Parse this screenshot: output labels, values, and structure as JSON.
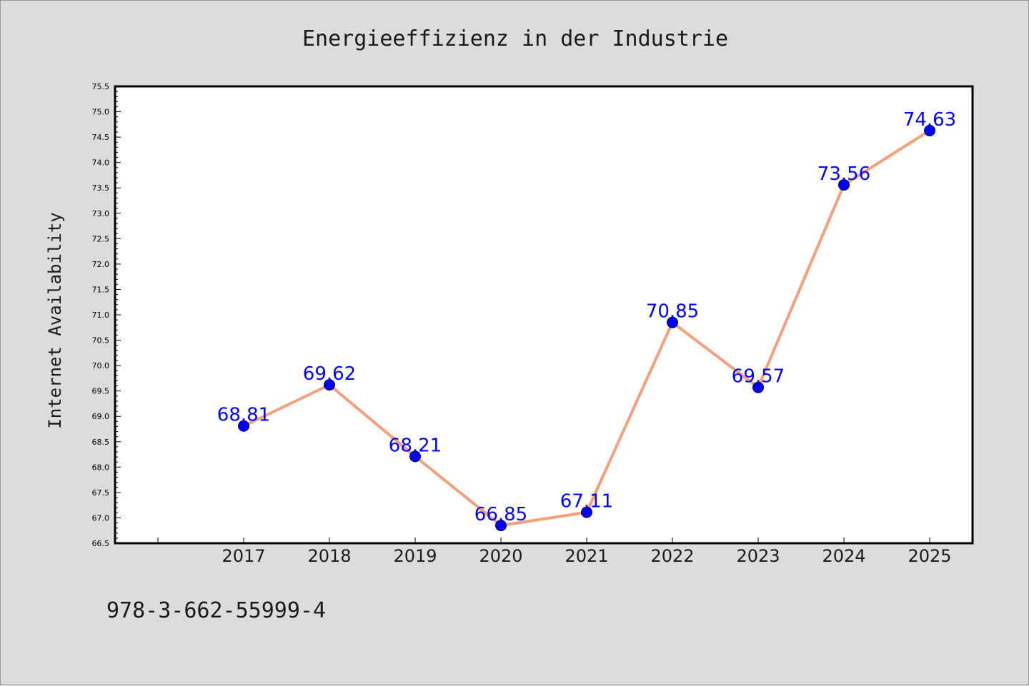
{
  "chart_data": {
    "type": "line",
    "title": "Energieeffizienz in der Industrie",
    "ylabel": "Internet Availability",
    "xlabel": "",
    "categories": [
      "2017",
      "2018",
      "2019",
      "2020",
      "2021",
      "2022",
      "2023",
      "2024",
      "2025"
    ],
    "series": [
      {
        "values": [
          68.81,
          69.62,
          68.21,
          66.85,
          67.11,
          70.85,
          69.57,
          73.56,
          74.63
        ],
        "labels": [
          "68.81",
          "69.62",
          "68.21",
          "66.85",
          "67.11",
          "70.85",
          "69.57",
          "73.56",
          "74.63"
        ],
        "line_color": "#f4a07c",
        "marker_color": "#0000ff"
      }
    ],
    "ylim": [
      66.5,
      75.5
    ],
    "yticks": [
      "66.5",
      "67.0",
      "67.5",
      "68.0",
      "68.5",
      "69.0",
      "69.5",
      "70.0",
      "70.5",
      "71.0",
      "71.5",
      "72.0",
      "72.5",
      "73.0",
      "73.5",
      "74.0",
      "74.5",
      "75.0",
      "75.5"
    ],
    "grid": false,
    "legend": "none"
  },
  "footer": {
    "isbn": "978-3-662-55999-4"
  }
}
